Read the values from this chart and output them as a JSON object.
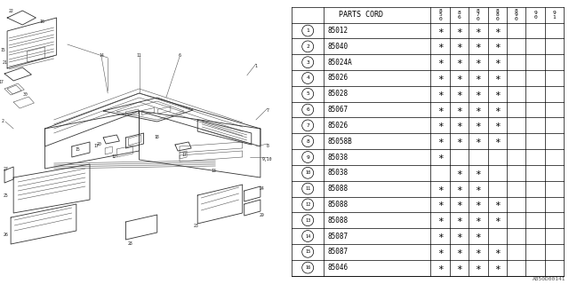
{
  "title": "A850D00141",
  "table_header": "PARTS CORD",
  "col_headers": [
    "85\n0",
    "86",
    "87\n0",
    "88\n0",
    "89\n0",
    "90",
    "91"
  ],
  "col_headers_display": [
    "8\n5\n0",
    "8\n6",
    "8\n7\n0",
    "8\n8\n0",
    "8\n9\n0",
    "9\n0",
    "9\n1"
  ],
  "parts": [
    {
      "num": 1,
      "code": "85012",
      "marks": [
        1,
        1,
        1,
        1,
        0,
        0,
        0
      ]
    },
    {
      "num": 2,
      "code": "85040",
      "marks": [
        1,
        1,
        1,
        1,
        0,
        0,
        0
      ]
    },
    {
      "num": 3,
      "code": "85024A",
      "marks": [
        1,
        1,
        1,
        1,
        0,
        0,
        0
      ]
    },
    {
      "num": 4,
      "code": "85026",
      "marks": [
        1,
        1,
        1,
        1,
        0,
        0,
        0
      ]
    },
    {
      "num": 5,
      "code": "85028",
      "marks": [
        1,
        1,
        1,
        1,
        0,
        0,
        0
      ]
    },
    {
      "num": 6,
      "code": "85067",
      "marks": [
        1,
        1,
        1,
        1,
        0,
        0,
        0
      ]
    },
    {
      "num": 7,
      "code": "85026",
      "marks": [
        1,
        1,
        1,
        1,
        0,
        0,
        0
      ]
    },
    {
      "num": 8,
      "code": "85058B",
      "marks": [
        1,
        1,
        1,
        1,
        0,
        0,
        0
      ]
    },
    {
      "num": 9,
      "code": "85038",
      "marks": [
        1,
        0,
        0,
        0,
        0,
        0,
        0
      ]
    },
    {
      "num": 10,
      "code": "85038",
      "marks": [
        0,
        1,
        1,
        0,
        0,
        0,
        0
      ]
    },
    {
      "num": 11,
      "code": "85088",
      "marks": [
        1,
        1,
        1,
        0,
        0,
        0,
        0
      ]
    },
    {
      "num": 12,
      "code": "85088",
      "marks": [
        1,
        1,
        1,
        1,
        0,
        0,
        0
      ]
    },
    {
      "num": 13,
      "code": "85088",
      "marks": [
        1,
        1,
        1,
        1,
        0,
        0,
        0
      ]
    },
    {
      "num": 14,
      "code": "85087",
      "marks": [
        1,
        1,
        1,
        0,
        0,
        0,
        0
      ]
    },
    {
      "num": 15,
      "code": "85087",
      "marks": [
        1,
        1,
        1,
        1,
        0,
        0,
        0
      ]
    },
    {
      "num": 16,
      "code": "85046",
      "marks": [
        1,
        1,
        1,
        1,
        0,
        0,
        0
      ]
    }
  ],
  "bg_color": "#ffffff",
  "line_color": "#000000",
  "text_color": "#000000"
}
